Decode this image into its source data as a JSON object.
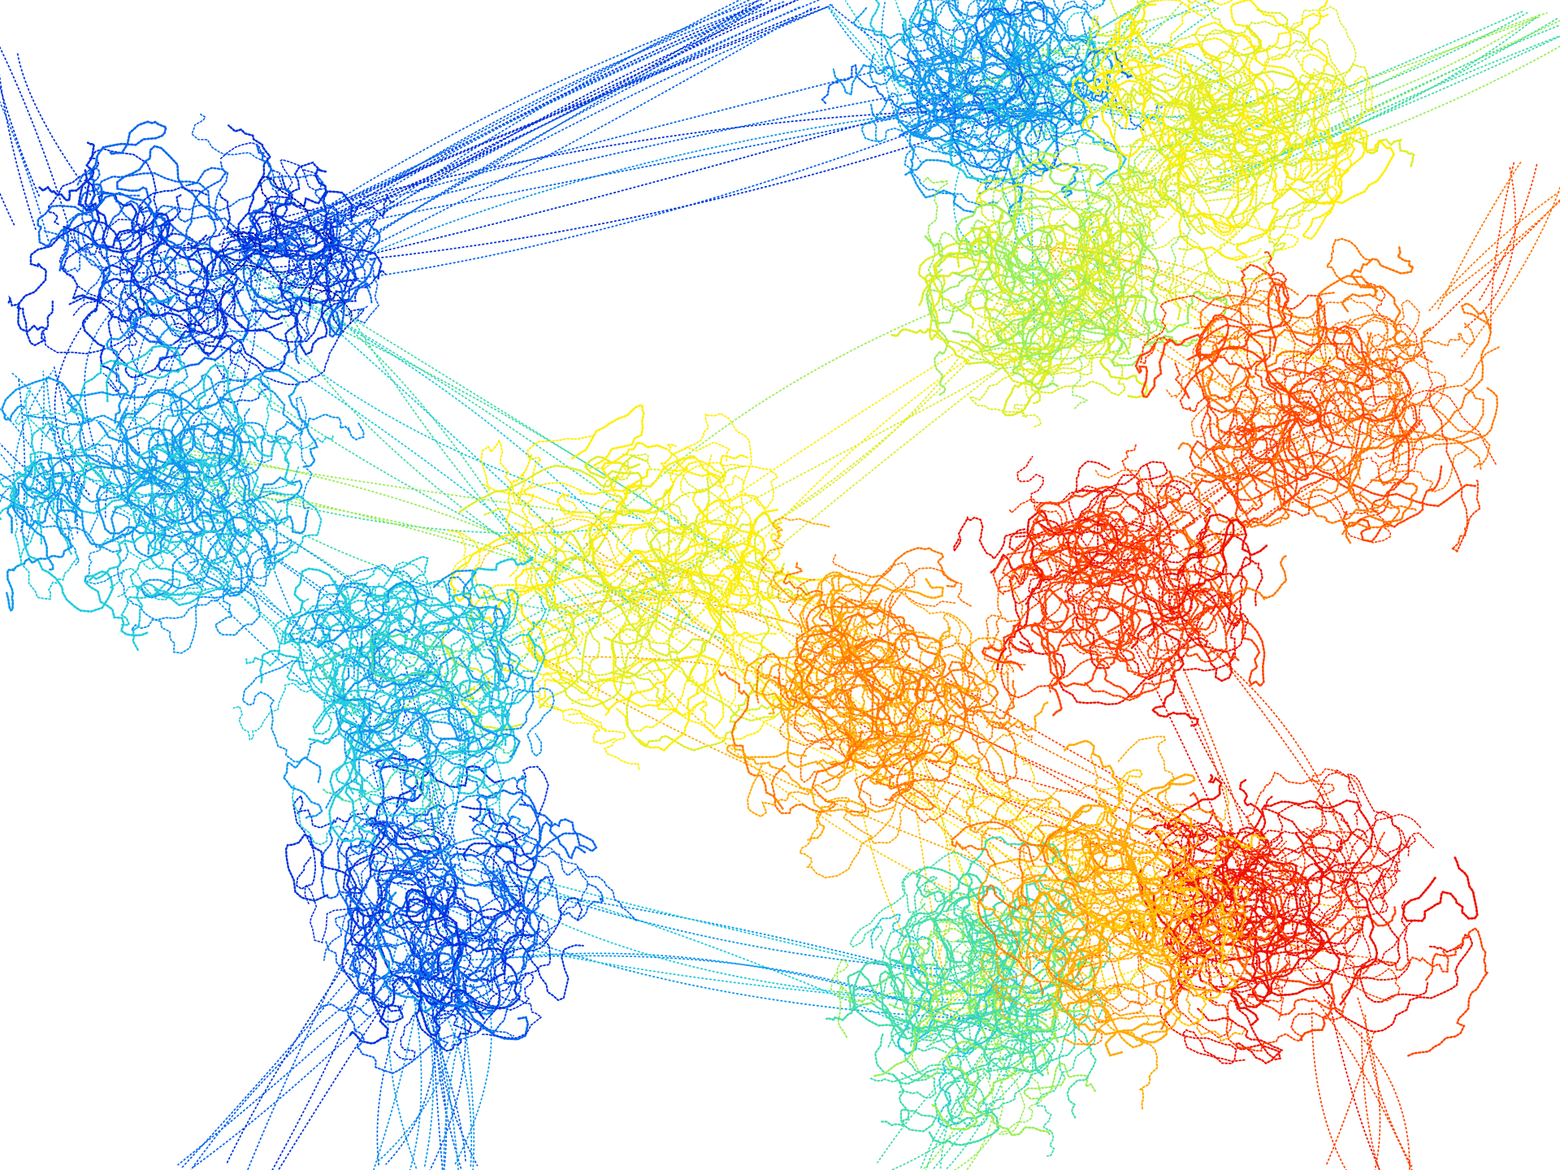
{
  "visualization": {
    "kind": "trajectory-point-cloud",
    "background_color": "#ffffff",
    "colormap": "jet",
    "palette": [
      "#0000aa",
      "#0033dd",
      "#0a66ee",
      "#1199ee",
      "#22ccdd",
      "#44ddaa",
      "#99ee55",
      "#ddee22",
      "#ffee00",
      "#ffcc00",
      "#ffaa00",
      "#ff7700",
      "#ff4400",
      "#ee1100"
    ],
    "clusters": [
      {
        "region": "upper-left",
        "hue": "blue"
      },
      {
        "region": "left-middle",
        "hue": "cyan-blue"
      },
      {
        "region": "lower-left-center",
        "hue": "blue"
      },
      {
        "region": "top-center",
        "hue": "cyan-blue"
      },
      {
        "region": "top-right",
        "hue": "green-yellow"
      },
      {
        "region": "center",
        "hue": "yellow-green"
      },
      {
        "region": "center-right",
        "hue": "orange"
      },
      {
        "region": "right",
        "hue": "orange-red"
      },
      {
        "region": "lower-right",
        "hue": "red"
      },
      {
        "region": "bottom-center",
        "hue": "cyan-green"
      }
    ],
    "text_labels": []
  }
}
